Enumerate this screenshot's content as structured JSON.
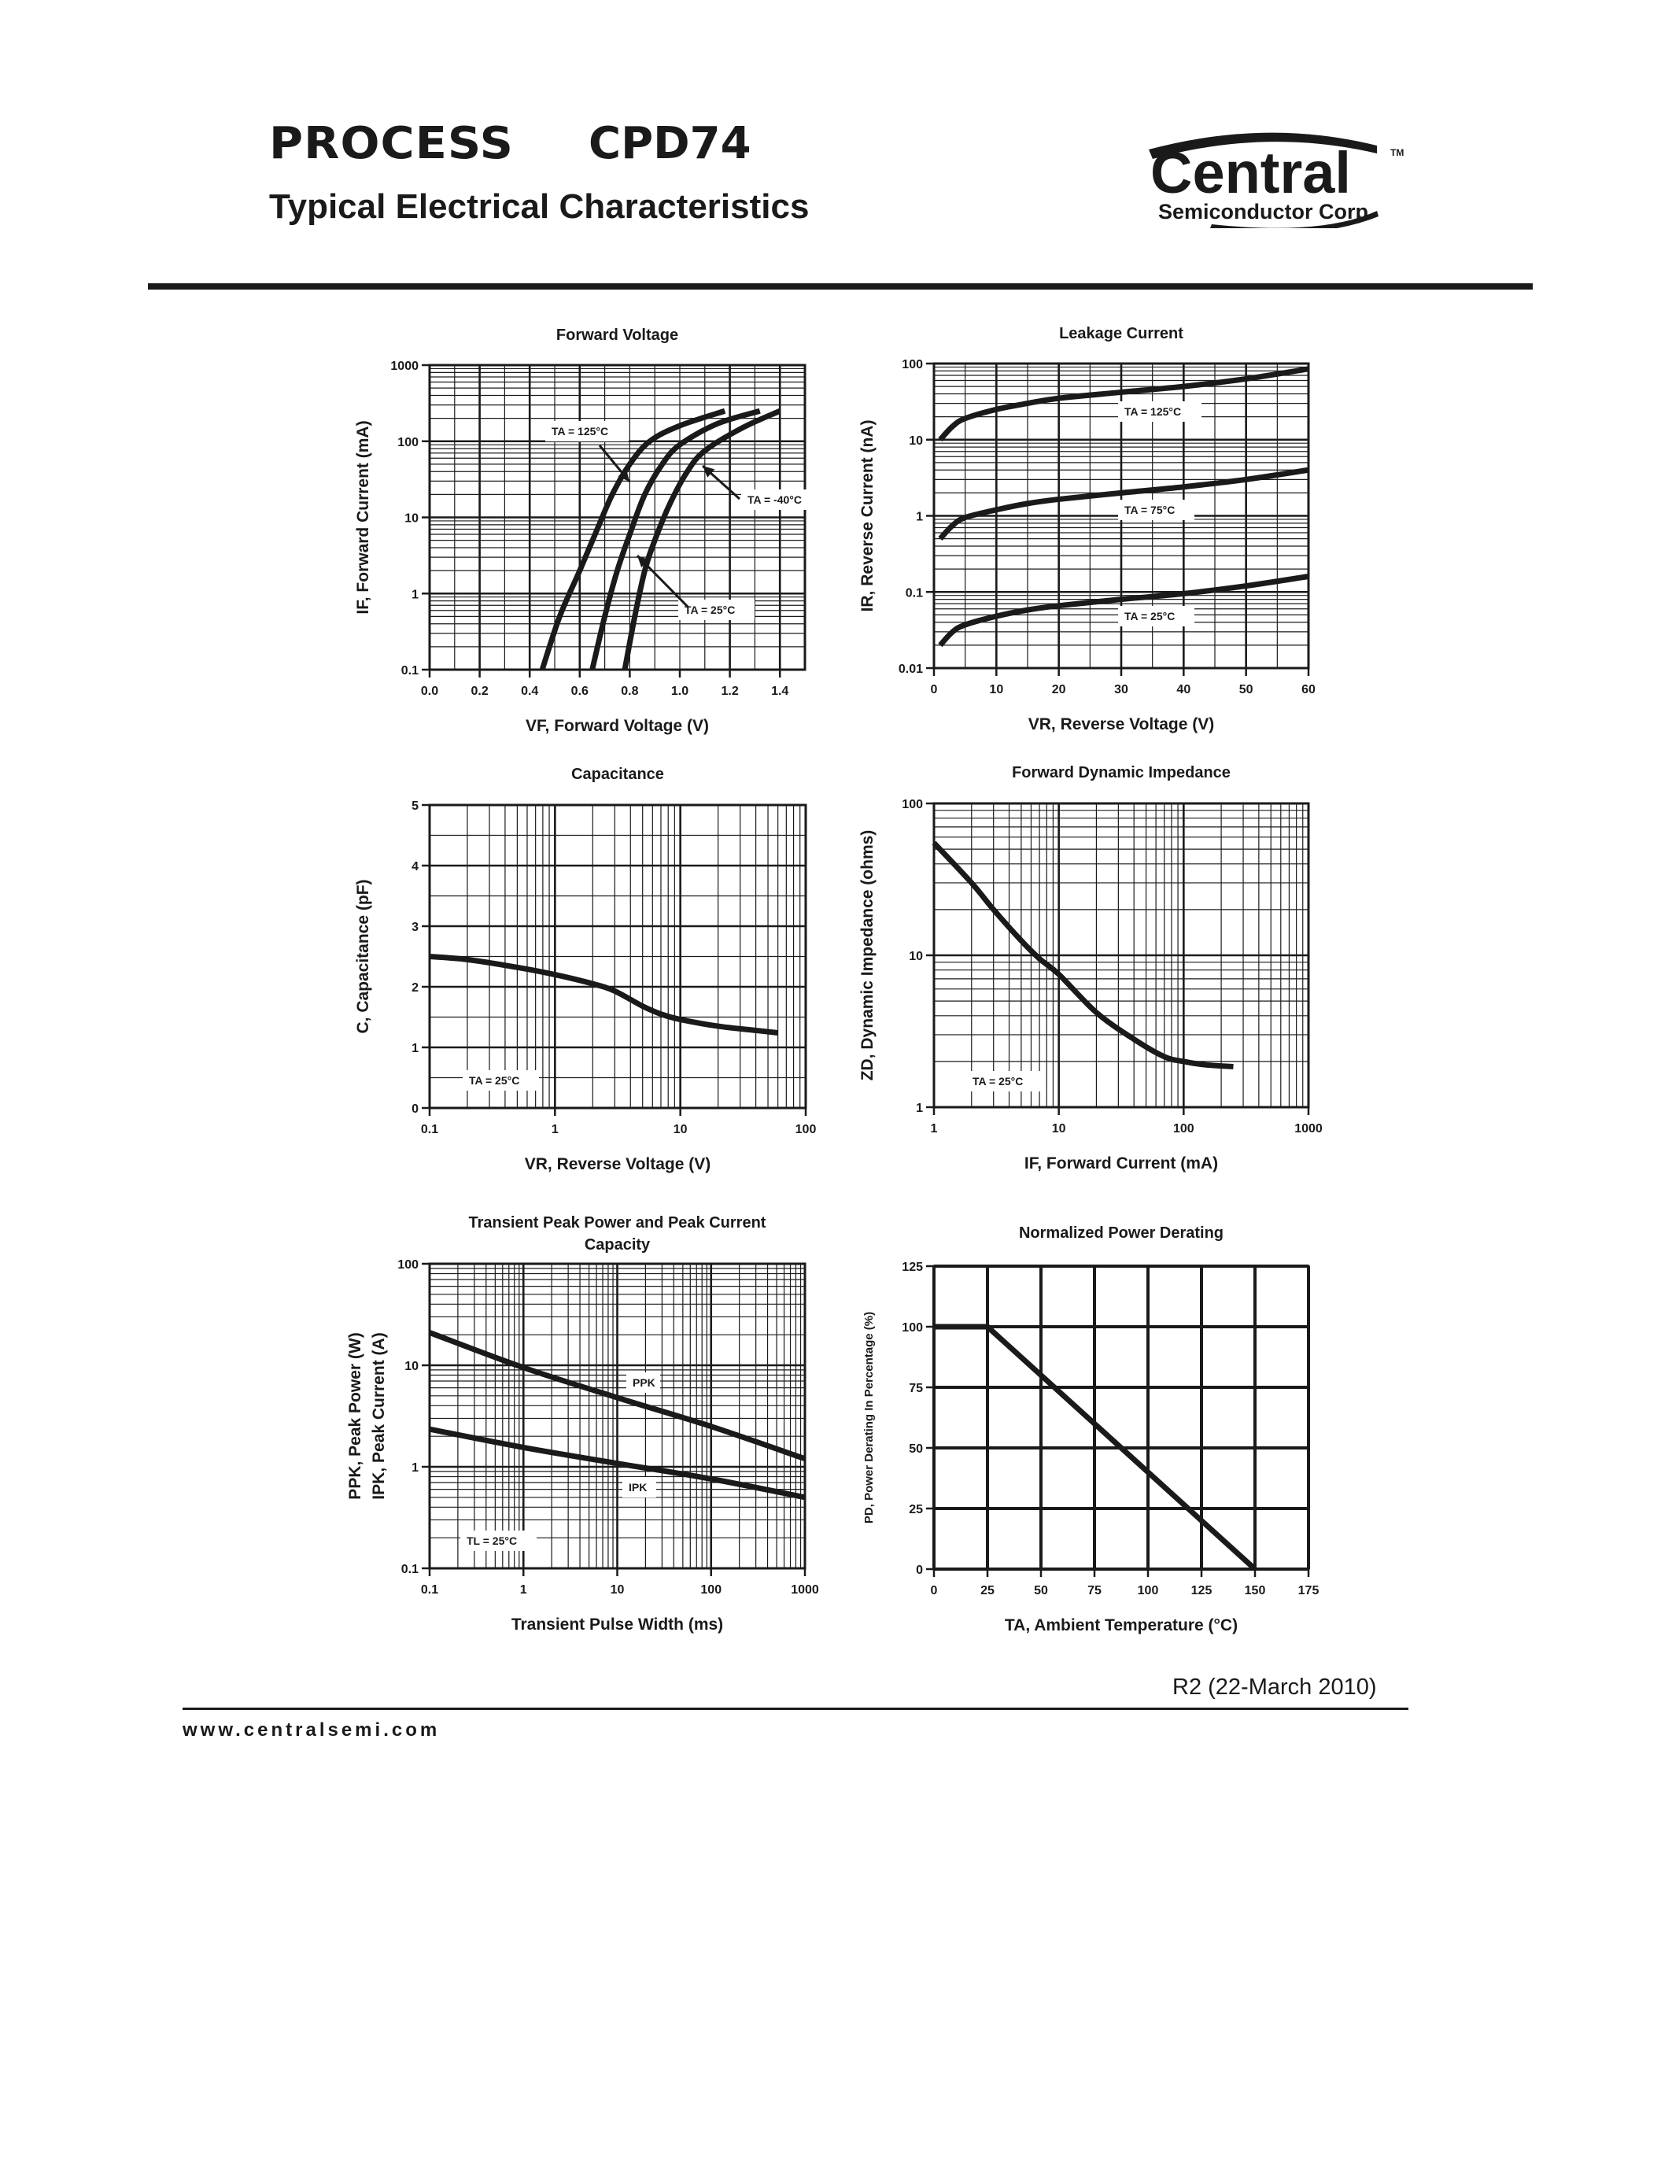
{
  "header": {
    "process_label": "PROCESS",
    "part_number": "CPD74",
    "subtitle": "Typical Electrical Characteristics",
    "logo_main": "Central",
    "logo_sub": "Semiconductor Corp.",
    "logo_tm": "TM"
  },
  "footer": {
    "revision": "R2 (22-March 2010)",
    "website": "www.centralsemi.com"
  },
  "chart_data": [
    {
      "id": "forward_voltage",
      "type": "line",
      "title": "Forward Voltage",
      "xlabel": "VF, Forward Voltage (V)",
      "ylabel": "IF, Forward Current (mA)",
      "xscale": "linear",
      "yscale": "log",
      "xlim": [
        0,
        1.5
      ],
      "ylim": [
        0.1,
        1000
      ],
      "xticks": [
        "0.0",
        "0.2",
        "0.4",
        "0.6",
        "0.8",
        "1.0",
        "1.2",
        "1.4"
      ],
      "yticks": [
        "0.1",
        "1",
        "10",
        "100",
        "1000"
      ],
      "grid": true,
      "series": [
        {
          "name": "TA = 125°C",
          "x": [
            0.45,
            0.52,
            0.6,
            0.67,
            0.73,
            0.8,
            0.88,
            1.0,
            1.18
          ],
          "y": [
            0.1,
            0.5,
            2,
            7,
            20,
            50,
            100,
            160,
            250
          ]
        },
        {
          "name": "TA = 25°C",
          "x": [
            0.65,
            0.7,
            0.75,
            0.8,
            0.86,
            0.93,
            1.0,
            1.15,
            1.32
          ],
          "y": [
            0.1,
            0.5,
            2,
            6,
            20,
            50,
            90,
            170,
            250
          ]
        },
        {
          "name": "TA = -40°C",
          "x": [
            0.78,
            0.82,
            0.86,
            0.9,
            0.96,
            1.03,
            1.1,
            1.25,
            1.4
          ],
          "y": [
            0.1,
            0.5,
            2,
            5,
            15,
            40,
            75,
            150,
            250
          ]
        }
      ],
      "annotations": [
        "TA = 125°C",
        "TA = -40°C",
        "TA = 25°C"
      ]
    },
    {
      "id": "leakage_current",
      "type": "line",
      "title": "Leakage Current",
      "xlabel": "VR, Reverse Voltage (V)",
      "ylabel": "IR, Reverse Current (nA)",
      "xscale": "linear",
      "yscale": "log",
      "xlim": [
        0,
        60
      ],
      "ylim": [
        0.01,
        100
      ],
      "xticks": [
        "0",
        "10",
        "20",
        "30",
        "40",
        "50",
        "60"
      ],
      "yticks": [
        "0.01",
        "0.1",
        "1",
        "10",
        "100"
      ],
      "grid": true,
      "series": [
        {
          "name": "TA = 125°C",
          "x": [
            1,
            3,
            5,
            10,
            15,
            20,
            30,
            40,
            50,
            60
          ],
          "y": [
            10,
            15,
            19,
            25,
            30,
            35,
            42,
            50,
            63,
            85
          ]
        },
        {
          "name": "TA = 75°C",
          "x": [
            1,
            3,
            5,
            10,
            15,
            20,
            30,
            40,
            50,
            60
          ],
          "y": [
            0.5,
            0.75,
            0.95,
            1.2,
            1.45,
            1.65,
            2.0,
            2.4,
            3.0,
            4.0
          ]
        },
        {
          "name": "TA = 25°C",
          "x": [
            1,
            3,
            5,
            10,
            15,
            20,
            30,
            40,
            50,
            60
          ],
          "y": [
            0.02,
            0.03,
            0.037,
            0.048,
            0.058,
            0.066,
            0.08,
            0.095,
            0.12,
            0.16
          ]
        }
      ],
      "annotations": [
        "TA = 125°C",
        "TA = 75°C",
        "TA = 25°C"
      ]
    },
    {
      "id": "capacitance",
      "type": "line",
      "title": "Capacitance",
      "xlabel": "VR, Reverse Voltage (V)",
      "ylabel": "C, Capacitance (pF)",
      "xscale": "log",
      "yscale": "linear",
      "xlim": [
        0.1,
        100
      ],
      "ylim": [
        0,
        5
      ],
      "xticks": [
        "0.1",
        "1",
        "10",
        "100"
      ],
      "yticks": [
        "0",
        "1",
        "2",
        "3",
        "4",
        "5"
      ],
      "grid": true,
      "series": [
        {
          "name": "TA = 25°C",
          "x": [
            0.1,
            0.2,
            0.5,
            1,
            2,
            3,
            5,
            7,
            10,
            20,
            40,
            60
          ],
          "y": [
            2.5,
            2.45,
            2.32,
            2.2,
            2.05,
            1.93,
            1.68,
            1.55,
            1.46,
            1.35,
            1.28,
            1.24
          ]
        }
      ],
      "annotations": [
        "TA = 25°C"
      ]
    },
    {
      "id": "forward_dynamic_impedance",
      "type": "line",
      "title": "Forward Dynamic Impedance",
      "xlabel": "IF, Forward Current (mA)",
      "ylabel": "ZD, Dynamic Impedance (ohms)",
      "xscale": "log",
      "yscale": "log",
      "xlim": [
        1,
        1000
      ],
      "ylim": [
        1,
        100
      ],
      "xticks": [
        "1",
        "10",
        "100",
        "1000"
      ],
      "yticks": [
        "1",
        "10",
        "100"
      ],
      "grid": true,
      "series": [
        {
          "name": "TA = 25°C",
          "x": [
            1,
            2,
            3,
            5,
            7,
            10,
            20,
            40,
            70,
            100,
            150,
            250
          ],
          "y": [
            55,
            30,
            20,
            12.5,
            9.5,
            7.5,
            4.2,
            2.8,
            2.15,
            2.0,
            1.9,
            1.85
          ]
        }
      ],
      "annotations": [
        "TA = 25°C"
      ]
    },
    {
      "id": "transient_peak_power",
      "type": "line",
      "title": "Transient Peak Power and Peak Current Capacity",
      "xlabel": "Transient Pulse Width (ms)",
      "ylabel": "PPK, Peak Power (W) / IPK, Peak Current (A)",
      "xscale": "log",
      "yscale": "log",
      "xlim": [
        0.1,
        1000
      ],
      "ylim": [
        0.1,
        100
      ],
      "xticks": [
        "0.1",
        "1",
        "10",
        "100",
        "1000"
      ],
      "yticks": [
        "0.1",
        "1",
        "10",
        "100"
      ],
      "grid": true,
      "series": [
        {
          "name": "PPK",
          "x": [
            0.1,
            1,
            10,
            100,
            1000
          ],
          "y": [
            21,
            9.5,
            4.8,
            2.5,
            1.2
          ]
        },
        {
          "name": "IPK",
          "x": [
            0.1,
            1,
            10,
            100,
            1000
          ],
          "y": [
            2.35,
            1.55,
            1.08,
            0.76,
            0.5
          ]
        }
      ],
      "annotations": [
        "PPK",
        "IPK",
        "TL = 25°C"
      ]
    },
    {
      "id": "normalized_power_derating",
      "type": "line",
      "title": "Normalized Power Derating",
      "xlabel": "TA, Ambient Temperature (°C)",
      "ylabel": "PD, Power Derating In Percentage (%)",
      "xscale": "linear",
      "yscale": "linear",
      "xlim": [
        0,
        175
      ],
      "ylim": [
        0,
        125
      ],
      "xticks": [
        "0",
        "25",
        "50",
        "75",
        "100",
        "125",
        "150",
        "175"
      ],
      "yticks": [
        "0",
        "25",
        "50",
        "75",
        "100",
        "125"
      ],
      "grid": true,
      "series": [
        {
          "name": "PD",
          "x": [
            0,
            25,
            150
          ],
          "y": [
            100,
            100,
            0
          ]
        }
      ]
    }
  ]
}
